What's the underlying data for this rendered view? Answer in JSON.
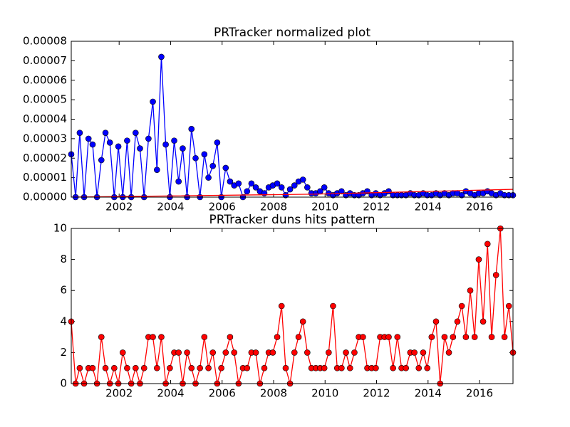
{
  "chart_data": [
    {
      "type": "line",
      "title": "PRTracker normalized plot",
      "x": [
        2000.14,
        2000.31,
        2000.47,
        2000.64,
        2000.81,
        2000.97,
        2001.14,
        2001.31,
        2001.47,
        2001.64,
        2001.81,
        2001.97,
        2002.14,
        2002.31,
        2002.47,
        2002.64,
        2002.81,
        2002.97,
        2003.14,
        2003.31,
        2003.47,
        2003.64,
        2003.81,
        2003.97,
        2004.14,
        2004.31,
        2004.47,
        2004.64,
        2004.81,
        2004.97,
        2005.14,
        2005.31,
        2005.47,
        2005.64,
        2005.81,
        2005.97,
        2006.14,
        2006.31,
        2006.47,
        2006.64,
        2006.81,
        2006.97,
        2007.14,
        2007.31,
        2007.47,
        2007.64,
        2007.81,
        2007.97,
        2008.14,
        2008.31,
        2008.47,
        2008.64,
        2008.81,
        2008.97,
        2009.14,
        2009.31,
        2009.47,
        2009.64,
        2009.81,
        2009.97,
        2010.14,
        2010.31,
        2010.47,
        2010.64,
        2010.81,
        2010.97,
        2011.14,
        2011.31,
        2011.47,
        2011.64,
        2011.81,
        2011.97,
        2012.14,
        2012.31,
        2012.47,
        2012.64,
        2012.81,
        2012.97,
        2013.14,
        2013.31,
        2013.47,
        2013.64,
        2013.81,
        2013.97,
        2014.14,
        2014.31,
        2014.47,
        2014.64,
        2014.81,
        2014.97,
        2015.14,
        2015.31,
        2015.47,
        2015.64,
        2015.81,
        2015.97,
        2016.14,
        2016.31,
        2016.47,
        2016.64,
        2016.81,
        2016.97,
        2017.14,
        2017.3
      ],
      "series": [
        {
          "color": "#0000ff",
          "marker": true,
          "values": [
            2.2e-05,
            0,
            3.3e-05,
            0,
            3e-05,
            2.7e-05,
            0,
            1.9e-05,
            3.3e-05,
            2.8e-05,
            0,
            2.6e-05,
            0,
            2.9e-05,
            0,
            3.3e-05,
            2.5e-05,
            0,
            3e-05,
            4.9e-05,
            1.4e-05,
            7.2e-05,
            2.7e-05,
            0,
            2.9e-05,
            8e-06,
            2.5e-05,
            0,
            3.5e-05,
            2e-05,
            0,
            2.2e-05,
            1e-05,
            1.6e-05,
            2.8e-05,
            0,
            1.5e-05,
            8e-06,
            6e-06,
            7e-06,
            0,
            3e-06,
            7e-06,
            5e-06,
            3e-06,
            2e-06,
            5e-06,
            6e-06,
            7e-06,
            5e-06,
            1e-06,
            4e-06,
            6e-06,
            8e-06,
            9e-06,
            5e-06,
            2e-06,
            2e-06,
            3e-06,
            5e-06,
            2e-06,
            1e-06,
            2e-06,
            3e-06,
            1e-06,
            2e-06,
            1e-06,
            1e-06,
            2e-06,
            3e-06,
            1e-06,
            2e-06,
            1e-06,
            2e-06,
            3e-06,
            1e-06,
            1e-06,
            1e-06,
            1e-06,
            2e-06,
            1e-06,
            1e-06,
            2e-06,
            1e-06,
            1e-06,
            2e-06,
            1e-06,
            2e-06,
            1e-06,
            2e-06,
            2e-06,
            1e-06,
            3e-06,
            2e-06,
            1e-06,
            2e-06,
            2e-06,
            3e-06,
            2e-06,
            1e-06,
            2e-06,
            1e-06,
            1e-06,
            1e-06
          ]
        },
        {
          "color": "#ff0000",
          "marker": false,
          "x": [
            2000.14,
            2009.5,
            2017.3
          ],
          "values": [
            0,
            1.5e-06,
            4e-06
          ]
        }
      ],
      "xlim": [
        2000.14,
        2017.3
      ],
      "xticks": [
        2002,
        2004,
        2006,
        2008,
        2010,
        2012,
        2014,
        2016
      ],
      "ylim": [
        0,
        8e-05
      ],
      "yticks": [
        {
          "value": 0,
          "label": "0.00000"
        },
        {
          "value": 1e-05,
          "label": "0.00001"
        },
        {
          "value": 2e-05,
          "label": "0.00002"
        },
        {
          "value": 3e-05,
          "label": "0.00003"
        },
        {
          "value": 4e-05,
          "label": "0.00004"
        },
        {
          "value": 5e-05,
          "label": "0.00005"
        },
        {
          "value": 6e-05,
          "label": "0.00006"
        },
        {
          "value": 7e-05,
          "label": "0.00007"
        },
        {
          "value": 8e-05,
          "label": "0.00008"
        }
      ]
    },
    {
      "type": "line",
      "title": "PRTracker duns hits pattern",
      "x": [
        2000.14,
        2000.31,
        2000.47,
        2000.64,
        2000.81,
        2000.97,
        2001.14,
        2001.31,
        2001.47,
        2001.64,
        2001.81,
        2001.97,
        2002.14,
        2002.31,
        2002.47,
        2002.64,
        2002.81,
        2002.97,
        2003.14,
        2003.31,
        2003.47,
        2003.64,
        2003.81,
        2003.97,
        2004.14,
        2004.31,
        2004.47,
        2004.64,
        2004.81,
        2004.97,
        2005.14,
        2005.31,
        2005.47,
        2005.64,
        2005.81,
        2005.97,
        2006.14,
        2006.31,
        2006.47,
        2006.64,
        2006.81,
        2006.97,
        2007.14,
        2007.31,
        2007.47,
        2007.64,
        2007.81,
        2007.97,
        2008.14,
        2008.31,
        2008.47,
        2008.64,
        2008.81,
        2008.97,
        2009.14,
        2009.31,
        2009.47,
        2009.64,
        2009.81,
        2009.97,
        2010.14,
        2010.31,
        2010.47,
        2010.64,
        2010.81,
        2010.97,
        2011.14,
        2011.31,
        2011.47,
        2011.64,
        2011.81,
        2011.97,
        2012.14,
        2012.31,
        2012.47,
        2012.64,
        2012.81,
        2012.97,
        2013.14,
        2013.31,
        2013.47,
        2013.64,
        2013.81,
        2013.97,
        2014.14,
        2014.31,
        2014.47,
        2014.64,
        2014.81,
        2014.97,
        2015.14,
        2015.31,
        2015.47,
        2015.64,
        2015.81,
        2015.97,
        2016.14,
        2016.31,
        2016.47,
        2016.64,
        2016.81,
        2016.97,
        2017.14,
        2017.3
      ],
      "series": [
        {
          "color": "#ff0000",
          "marker": true,
          "values": [
            4,
            0,
            1,
            0,
            1,
            1,
            0,
            3,
            1,
            0,
            1,
            0,
            2,
            1,
            0,
            1,
            0,
            1,
            3,
            3,
            1,
            3,
            0,
            1,
            2,
            2,
            0,
            2,
            1,
            0,
            1,
            3,
            1,
            2,
            0,
            1,
            2,
            3,
            2,
            0,
            1,
            1,
            2,
            2,
            0,
            1,
            2,
            2,
            3,
            5,
            1,
            0,
            2,
            3,
            4,
            2,
            1,
            1,
            1,
            1,
            2,
            5,
            1,
            1,
            2,
            1,
            2,
            3,
            3,
            1,
            1,
            1,
            3,
            3,
            3,
            1,
            3,
            1,
            1,
            2,
            2,
            1,
            2,
            1,
            3,
            4,
            0,
            3,
            2,
            3,
            4,
            5,
            3,
            6,
            3,
            8,
            4,
            9,
            3,
            7,
            10,
            3,
            5,
            2
          ]
        }
      ],
      "xlim": [
        2000.14,
        2017.3
      ],
      "xticks": [
        2002,
        2004,
        2006,
        2008,
        2010,
        2012,
        2014,
        2016
      ],
      "ylim": [
        0,
        10
      ],
      "yticks": [
        0,
        2,
        4,
        6,
        8,
        10
      ]
    }
  ]
}
